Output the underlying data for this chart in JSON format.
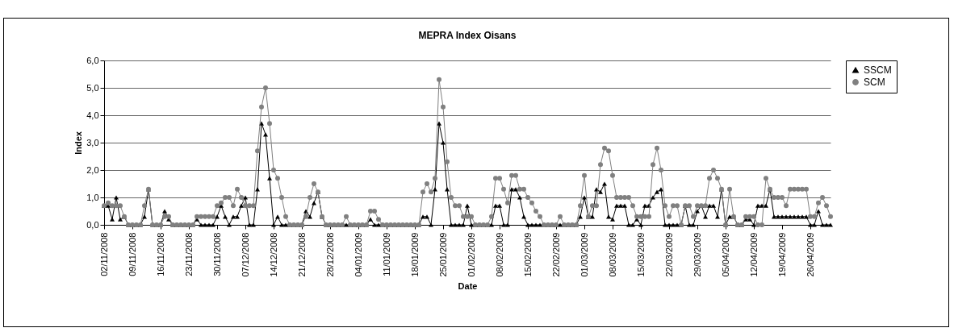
{
  "chart_data": {
    "type": "line",
    "title": "MEPRA Index Oisans",
    "xlabel": "Date",
    "ylabel": "Index",
    "categories": [
      "02/11/2008",
      null,
      null,
      null,
      null,
      null,
      null,
      "09/11/2008",
      null,
      null,
      null,
      null,
      null,
      null,
      "16/11/2008",
      null,
      null,
      null,
      null,
      null,
      null,
      "23/11/2008",
      null,
      null,
      null,
      null,
      null,
      null,
      "30/11/2008",
      null,
      null,
      null,
      null,
      null,
      null,
      "07/12/2008",
      null,
      null,
      null,
      null,
      null,
      null,
      "14/12/2008",
      null,
      null,
      null,
      null,
      null,
      null,
      "21/12/2008",
      null,
      null,
      null,
      null,
      null,
      null,
      "28/12/2008",
      null,
      null,
      null,
      null,
      null,
      null,
      "04/01/2009",
      null,
      null,
      null,
      null,
      null,
      null,
      "11/01/2009",
      null,
      null,
      null,
      null,
      null,
      null,
      "18/01/2009",
      null,
      null,
      null,
      null,
      null,
      null,
      "25/01/2009",
      null,
      null,
      null,
      null,
      null,
      null,
      "01/02/2009",
      null,
      null,
      null,
      null,
      null,
      null,
      "08/02/2009",
      null,
      null,
      null,
      null,
      null,
      null,
      "15/02/2009",
      null,
      null,
      null,
      null,
      null,
      null,
      "22/02/2009",
      null,
      null,
      null,
      null,
      null,
      null,
      "01/03/2009",
      null,
      null,
      null,
      null,
      null,
      null,
      "08/03/2009",
      null,
      null,
      null,
      null,
      null,
      null,
      "15/03/2009",
      null,
      null,
      null,
      null,
      null,
      null,
      "22/03/2009",
      null,
      null,
      null,
      null,
      null,
      null,
      "29/03/2009",
      null,
      null,
      null,
      null,
      null,
      null,
      "05/04/2009",
      null,
      null,
      null,
      null,
      null,
      null,
      "12/04/2009",
      null,
      null,
      null,
      null,
      null,
      null,
      "19/04/2009",
      null,
      null,
      null,
      null,
      null,
      null,
      "26/04/2009",
      null,
      null,
      null,
      null,
      null
    ],
    "series": [
      {
        "name": "SSCM",
        "color": "#000000",
        "marker": "triangle",
        "values": [
          0.7,
          0.7,
          0.2,
          1.0,
          0.2,
          0.3,
          0,
          0,
          0,
          0,
          0.3,
          1.3,
          0,
          0,
          0,
          0.5,
          0.2,
          0,
          0,
          0,
          0,
          0,
          0,
          0.2,
          0,
          0,
          0,
          0,
          0.3,
          0.7,
          0.3,
          0,
          0.3,
          0.3,
          0.7,
          1.0,
          0,
          0,
          1.3,
          3.7,
          3.3,
          1.7,
          0,
          0.3,
          0,
          0,
          0,
          0,
          0,
          0,
          0.5,
          0.3,
          0.8,
          1.2,
          0.3,
          0,
          0,
          0,
          0,
          0,
          0,
          0,
          0,
          0,
          0,
          0,
          0.2,
          0,
          0,
          0,
          0,
          0,
          0,
          0,
          0,
          0,
          0,
          0,
          0,
          0.3,
          0.3,
          0,
          1.3,
          3.7,
          3.0,
          1.3,
          0,
          0,
          0,
          0,
          0.7,
          0,
          0,
          0,
          0,
          0,
          0,
          0.7,
          0.7,
          0,
          0,
          1.3,
          1.3,
          1.0,
          0.3,
          0,
          0,
          0,
          0,
          0,
          0,
          0,
          0,
          0,
          0,
          0,
          0,
          0,
          0.3,
          1.0,
          0.3,
          0.3,
          1.3,
          1.2,
          1.5,
          0.3,
          0.2,
          0.7,
          0.7,
          0.7,
          0,
          0,
          0.2,
          0,
          0.7,
          0.7,
          1.0,
          1.2,
          1.3,
          0,
          0,
          0,
          0,
          0,
          0.7,
          0,
          0,
          0.5,
          0.7,
          0.3,
          0.7,
          0.7,
          0.3,
          1.3,
          0,
          0.3,
          0.3,
          0,
          0,
          0.2,
          0.2,
          0,
          0.7,
          0.7,
          0.7,
          1.3,
          0.3,
          0.3,
          0.3,
          0.3,
          0.3,
          0.3,
          0.3,
          0.3,
          0.3,
          0,
          0,
          0.5,
          0,
          0,
          0
        ]
      },
      {
        "name": "SCM",
        "color": "#808080",
        "marker": "circle",
        "values": [
          0.7,
          0.8,
          0.7,
          0.7,
          0.7,
          0.3,
          0,
          0,
          0,
          0,
          0.7,
          1.3,
          0,
          0,
          0,
          0.3,
          0.3,
          0,
          0,
          0,
          0,
          0,
          0,
          0.3,
          0.3,
          0.3,
          0.3,
          0.3,
          0.7,
          0.8,
          1.0,
          1.0,
          0.7,
          1.3,
          1.0,
          0.7,
          0.7,
          0.7,
          2.7,
          4.3,
          5.0,
          3.7,
          2.0,
          1.7,
          1.0,
          0.3,
          0,
          0,
          0,
          0,
          0.3,
          1.0,
          1.5,
          1.2,
          0.3,
          0,
          0,
          0,
          0,
          0,
          0.3,
          0,
          0,
          0,
          0,
          0,
          0.5,
          0.5,
          0.2,
          0,
          0,
          0,
          0,
          0,
          0,
          0,
          0,
          0,
          0,
          1.2,
          1.5,
          1.2,
          1.7,
          5.3,
          4.3,
          2.3,
          1.0,
          0.7,
          0.7,
          0.3,
          0.3,
          0.3,
          0,
          0,
          0,
          0,
          0.3,
          1.7,
          1.7,
          1.3,
          0.8,
          1.8,
          1.8,
          1.3,
          1.3,
          1.0,
          0.8,
          0.5,
          0.3,
          0,
          0,
          0,
          0,
          0.3,
          0,
          0,
          0,
          0,
          0.7,
          1.8,
          0.3,
          0.7,
          0.7,
          2.2,
          2.8,
          2.7,
          1.8,
          1.0,
          1.0,
          1.0,
          1.0,
          0.7,
          0.3,
          0.3,
          0.3,
          0.3,
          2.2,
          2.8,
          2.0,
          0.7,
          0.3,
          0.7,
          0.7,
          0,
          0.7,
          0.7,
          0.3,
          0.7,
          0.7,
          0.7,
          1.7,
          2.0,
          1.7,
          1.3,
          0,
          1.3,
          0.3,
          0,
          0,
          0.3,
          0.3,
          0.3,
          0,
          0,
          1.7,
          1.3,
          1.0,
          1.0,
          1.0,
          0.7,
          1.3,
          1.3,
          1.3,
          1.3,
          1.3,
          0.3,
          0.3,
          0.8,
          1.0,
          0.7,
          0.3
        ]
      }
    ],
    "ylim": [
      0,
      6
    ],
    "yticks": [
      {
        "value": 0,
        "label": "0,0"
      },
      {
        "value": 1,
        "label": "1,0"
      },
      {
        "value": 2,
        "label": "2,0"
      },
      {
        "value": 3,
        "label": "3,0"
      },
      {
        "value": 4,
        "label": "4,0"
      },
      {
        "value": 5,
        "label": "5,0"
      },
      {
        "value": 6,
        "label": "6,0"
      }
    ],
    "grid": "y",
    "legend": "right"
  }
}
